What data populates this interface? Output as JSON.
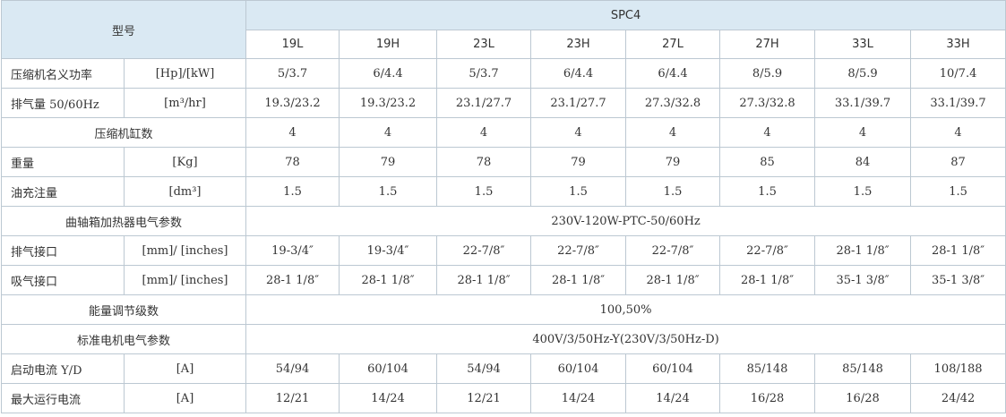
{
  "table": {
    "model_label": "型号",
    "series": "SPC4",
    "models": [
      "19L",
      "19H",
      "23L",
      "23H",
      "27L",
      "27H",
      "33L",
      "33H"
    ],
    "rows": [
      {
        "label": "压缩机名义功率",
        "unit": "[Hp]/[kW]",
        "values": [
          "5/3.7",
          "6/4.4",
          "5/3.7",
          "6/4.4",
          "6/4.4",
          "8/5.9",
          "8/5.9",
          "10/7.4"
        ]
      },
      {
        "label": "排气量 50/60Hz",
        "unit": "[m³/hr]",
        "values": [
          "19.3/23.2",
          "19.3/23.2",
          "23.1/27.7",
          "23.1/27.7",
          "27.3/32.8",
          "27.3/32.8",
          "33.1/39.7",
          "33.1/39.7"
        ]
      },
      {
        "label": "压缩机缸数",
        "values": [
          "4",
          "4",
          "4",
          "4",
          "4",
          "4",
          "4",
          "4"
        ]
      },
      {
        "label": "重量",
        "unit": "[Kg]",
        "values": [
          "78",
          "79",
          "78",
          "79",
          "79",
          "85",
          "84",
          "87"
        ]
      },
      {
        "label": "油充注量",
        "unit": "[dm³]",
        "values": [
          "1.5",
          "1.5",
          "1.5",
          "1.5",
          "1.5",
          "1.5",
          "1.5",
          "1.5"
        ]
      },
      {
        "label": "曲轴箱加热器电气参数",
        "merged_value": "230V-120W-PTC-50/60Hz"
      },
      {
        "label": "排气接口",
        "unit": "[mm]/ [inches]",
        "values": [
          "19-3/4″",
          "19-3/4″",
          "22-7/8″",
          "22-7/8″",
          "22-7/8″",
          "22-7/8″",
          "28-1 1/8″",
          "28-1 1/8″"
        ]
      },
      {
        "label": "吸气接口",
        "unit": "[mm]/ [inches]",
        "values": [
          "28-1 1/8″",
          "28-1 1/8″",
          "28-1 1/8″",
          "28-1 1/8″",
          "28-1 1/8″",
          "28-1 1/8″",
          "35-1 3/8″",
          "35-1 3/8″"
        ]
      },
      {
        "label": "能量调节级数",
        "merged_value": "100,50%"
      },
      {
        "label": "标准电机电气参数",
        "merged_value": "400V/3/50Hz-Y(230V/3/50Hz-D)"
      },
      {
        "label": "启动电流 Y/D",
        "unit": "[A]",
        "values": [
          "54/94",
          "60/104",
          "54/94",
          "60/104",
          "60/104",
          "85/148",
          "85/148",
          "108/188"
        ]
      },
      {
        "label": "最大运行电流",
        "unit": "[A]",
        "values": [
          "12/21",
          "14/24",
          "12/21",
          "14/24",
          "14/24",
          "16/28",
          "16/28",
          "24/42"
        ]
      }
    ],
    "colors": {
      "header_bg": "#dae9f3",
      "border": "#bcc8d2",
      "text": "#333333"
    }
  }
}
